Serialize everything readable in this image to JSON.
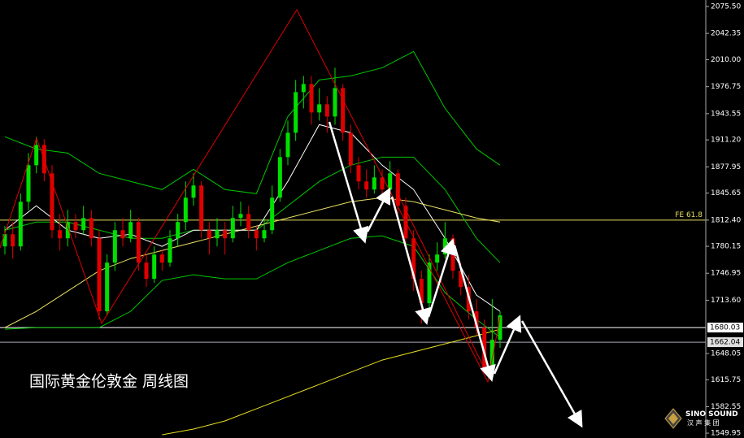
{
  "chart_data": {
    "type": "candlestick",
    "title": "国际黄金伦敦金  周线图",
    "ylim": [
      1544,
      2083.5
    ],
    "yticks": [
      {
        "value": 2075.5,
        "label": "2075.50"
      },
      2042.35,
      {
        "value": 2010,
        "label": "2010.00"
      },
      1976.75,
      1943.55,
      {
        "value": 1911.2,
        "label": "1911.20"
      },
      1877.95,
      1845.65,
      {
        "value": 1812.4,
        "label": "1812.40"
      },
      1780.15,
      1746.95,
      {
        "value": 1713.6,
        "label": "1713.60"
      },
      1648.05,
      1615.75,
      1582.55,
      1549.95
    ],
    "up_color": "#00e000",
    "down_color": "#e00000",
    "candles": [
      [
        1780,
        1805,
        1770,
        1795
      ],
      [
        1795,
        1810,
        1765,
        1780
      ],
      [
        1780,
        1845,
        1775,
        1835
      ],
      [
        1835,
        1895,
        1825,
        1880
      ],
      [
        1880,
        1915,
        1870,
        1905
      ],
      [
        1905,
        1912,
        1860,
        1870
      ],
      [
        1870,
        1880,
        1790,
        1800
      ],
      [
        1800,
        1820,
        1775,
        1790
      ],
      [
        1790,
        1825,
        1780,
        1810
      ],
      [
        1810,
        1820,
        1790,
        1800
      ],
      [
        1800,
        1830,
        1795,
        1815
      ],
      [
        1815,
        1825,
        1780,
        1790
      ],
      [
        1790,
        1800,
        1690,
        1700
      ],
      [
        1700,
        1770,
        1695,
        1760
      ],
      [
        1760,
        1810,
        1750,
        1800
      ],
      [
        1800,
        1815,
        1780,
        1790
      ],
      [
        1790,
        1825,
        1785,
        1810
      ],
      [
        1810,
        1815,
        1750,
        1760
      ],
      [
        1760,
        1770,
        1730,
        1740
      ],
      [
        1740,
        1780,
        1735,
        1770
      ],
      [
        1770,
        1775,
        1750,
        1760
      ],
      [
        1760,
        1800,
        1755,
        1790
      ],
      [
        1790,
        1820,
        1780,
        1810
      ],
      [
        1810,
        1860,
        1800,
        1840
      ],
      [
        1840,
        1870,
        1830,
        1855
      ],
      [
        1855,
        1860,
        1790,
        1800
      ],
      [
        1800,
        1810,
        1770,
        1790
      ],
      [
        1790,
        1815,
        1780,
        1800
      ],
      [
        1800,
        1810,
        1770,
        1790
      ],
      [
        1790,
        1830,
        1785,
        1815
      ],
      [
        1815,
        1835,
        1805,
        1820
      ],
      [
        1820,
        1830,
        1790,
        1800
      ],
      [
        1800,
        1805,
        1775,
        1790
      ],
      [
        1790,
        1815,
        1785,
        1800
      ],
      [
        1800,
        1855,
        1795,
        1840
      ],
      [
        1840,
        1900,
        1835,
        1890
      ],
      [
        1890,
        1935,
        1880,
        1920
      ],
      [
        1920,
        1985,
        1910,
        1970
      ],
      [
        1970,
        1990,
        1950,
        1980
      ],
      [
        1980,
        1990,
        1930,
        1945
      ],
      [
        1945,
        1975,
        1935,
        1955
      ],
      [
        1955,
        1965,
        1920,
        1940
      ],
      [
        1940,
        2000,
        1930,
        1975
      ],
      [
        1975,
        1980,
        1910,
        1920
      ],
      [
        1920,
        1930,
        1870,
        1880
      ],
      [
        1880,
        1890,
        1850,
        1860
      ],
      [
        1860,
        1875,
        1840,
        1850
      ],
      [
        1850,
        1880,
        1845,
        1865
      ],
      [
        1865,
        1875,
        1840,
        1850
      ],
      [
        1850,
        1885,
        1845,
        1870
      ],
      [
        1870,
        1875,
        1820,
        1830
      ],
      [
        1830,
        1840,
        1780,
        1790
      ],
      [
        1790,
        1800,
        1725,
        1740
      ],
      [
        1740,
        1750,
        1685,
        1710
      ],
      [
        1710,
        1770,
        1700,
        1760
      ],
      [
        1760,
        1785,
        1750,
        1770
      ],
      [
        1770,
        1810,
        1765,
        1790
      ],
      [
        1790,
        1795,
        1740,
        1750
      ],
      [
        1750,
        1760,
        1720,
        1730
      ],
      [
        1730,
        1745,
        1690,
        1700
      ],
      [
        1700,
        1715,
        1670,
        1680
      ],
      [
        1680,
        1690,
        1625,
        1630
      ],
      [
        1630,
        1715,
        1625,
        1665
      ],
      [
        1665,
        1700,
        1655,
        1695
      ]
    ],
    "overlay_x": [
      0,
      4,
      8,
      12,
      16,
      20,
      24,
      28,
      32,
      36,
      40,
      44,
      48,
      52,
      56,
      60,
      63
    ],
    "overlays": [
      {
        "color": "#00c800",
        "values": [
          1915,
          1900,
          1895,
          1870,
          1860,
          1850,
          1875,
          1850,
          1845,
          1940,
          1985,
          1990,
          2000,
          2020,
          1950,
          1900,
          1880
        ]
      },
      {
        "color": "#00c800",
        "values": [
          1800,
          1810,
          1810,
          1800,
          1790,
          1790,
          1800,
          1800,
          1800,
          1830,
          1860,
          1880,
          1890,
          1890,
          1850,
          1790,
          1760
        ]
      },
      {
        "color": "#00c800",
        "values": [
          1678,
          1680,
          1680,
          1680,
          1700,
          1738,
          1745,
          1740,
          1740,
          1760,
          1775,
          1790,
          1793,
          1780,
          1723,
          1690,
          1668
        ]
      },
      {
        "color": "#e8e060",
        "values": [
          1680,
          1700,
          1725,
          1750,
          1765,
          1775,
          1785,
          1795,
          1805,
          1815,
          1825,
          1835,
          1840,
          1835,
          1825,
          1815,
          1810
        ]
      },
      {
        "color": "#ffffff",
        "values": [
          1800,
          1830,
          1800,
          1790,
          1795,
          1780,
          1800,
          1800,
          1800,
          1860,
          1930,
          1920,
          1880,
          1850,
          1790,
          1720,
          1700
        ]
      },
      {
        "color": "#e8e020",
        "values": [
          null,
          null,
          null,
          null,
          null,
          1548,
          1555,
          1565,
          1580,
          1595,
          1610,
          1625,
          1640,
          1650,
          1660,
          1670,
          1678
        ]
      }
    ],
    "levels": [
      {
        "label": "FE 61.8",
        "value": 1812.4,
        "color": "#e8e060"
      }
    ],
    "price_marks": [
      1680.03,
      1662.04
    ],
    "logo": {
      "name": "SINO SOUND",
      "sub": "汉 声 集 团"
    }
  }
}
